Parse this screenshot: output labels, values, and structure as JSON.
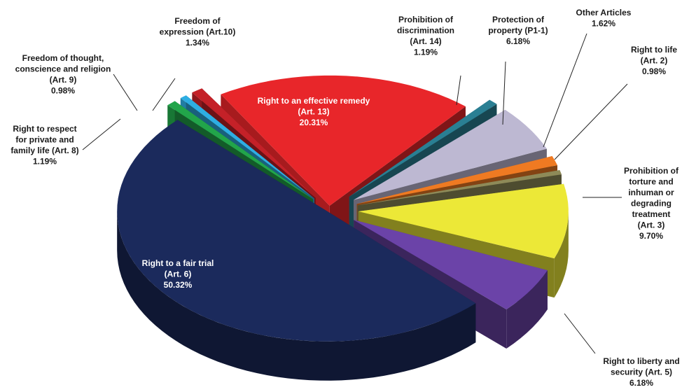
{
  "chart_data": {
    "type": "pie",
    "style": "3d-exploded",
    "title": "",
    "legend": "none",
    "slices": [
      {
        "label": [
          "Right to an effective remedy",
          "(Art. 13)"
        ],
        "value": 20.31,
        "value_label": "20.31%",
        "color": "#e8262a"
      },
      {
        "label": [
          "Prohibition of",
          "discrimination",
          "(Art. 14)"
        ],
        "value": 1.19,
        "value_label": "1.19%",
        "color": "#2a7f93"
      },
      {
        "label": [
          "Protection of",
          "property (P1-1)"
        ],
        "value": 6.18,
        "value_label": "6.18%",
        "color": "#bdb8d2"
      },
      {
        "label": [
          "Other Articles"
        ],
        "value": 1.62,
        "value_label": "1.62%",
        "color": "#ef7a22"
      },
      {
        "label": [
          "Right to life",
          "(Art. 2)"
        ],
        "value": 0.98,
        "value_label": "0.98%",
        "color": "#8e8a58"
      },
      {
        "label": [
          "Prohibition of",
          "torture and",
          "inhuman or",
          "degrading",
          "treatment",
          "(Art. 3)"
        ],
        "value": 9.7,
        "value_label": "9.70%",
        "color": "#ece837"
      },
      {
        "label": [
          "Right to liberty and",
          "security (Art. 5)"
        ],
        "value": 6.18,
        "value_label": "6.18%",
        "color": "#6b43a8"
      },
      {
        "label": [
          "Right to a fair trial",
          "(Art. 6)"
        ],
        "value": 50.32,
        "value_label": "50.32%",
        "color": "#1b2a5c"
      },
      {
        "label": [
          "Right to respect",
          "for private and",
          "family life (Art. 8)"
        ],
        "value": 1.19,
        "value_label": "1.19%",
        "color": "#22a54a"
      },
      {
        "label": [
          "Freedom of thought,",
          "conscience and religion",
          "(Art. 9)"
        ],
        "value": 0.98,
        "value_label": "0.98%",
        "color": "#2eaee3"
      },
      {
        "label": [
          "Freedom of",
          "expression (Art.10)"
        ],
        "value": 1.34,
        "value_label": "1.34%",
        "color": "#c42128"
      }
    ]
  }
}
